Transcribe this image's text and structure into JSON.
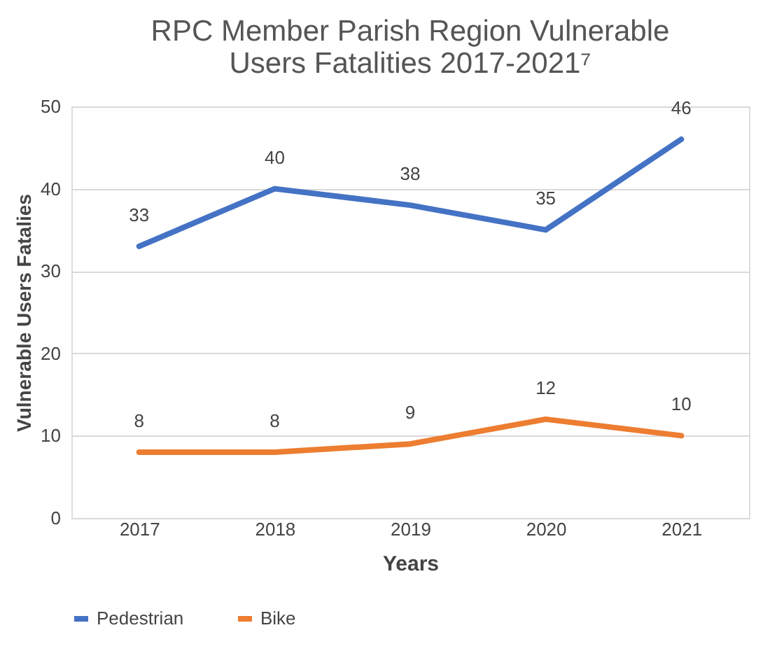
{
  "chart_data": {
    "type": "line",
    "title": "RPC Member Parish Region Vulnerable Users Fatalities 2017-2021⁷",
    "xlabel": "Years",
    "ylabel": "Vulnerable Users Fatalies",
    "categories": [
      "2017",
      "2018",
      "2019",
      "2020",
      "2021"
    ],
    "series": [
      {
        "name": "Pedestrian",
        "color": "#4472c4",
        "values": [
          33,
          40,
          38,
          35,
          46
        ]
      },
      {
        "name": "Bike",
        "color": "#ed7d31",
        "values": [
          8,
          8,
          9,
          12,
          10
        ]
      }
    ],
    "ylim": [
      0,
      50
    ],
    "yticks": [
      0,
      10,
      20,
      30,
      40,
      50
    ],
    "grid": "y",
    "legend": "bottom",
    "data_labels": true,
    "marker": "none",
    "line_style": "solid"
  }
}
